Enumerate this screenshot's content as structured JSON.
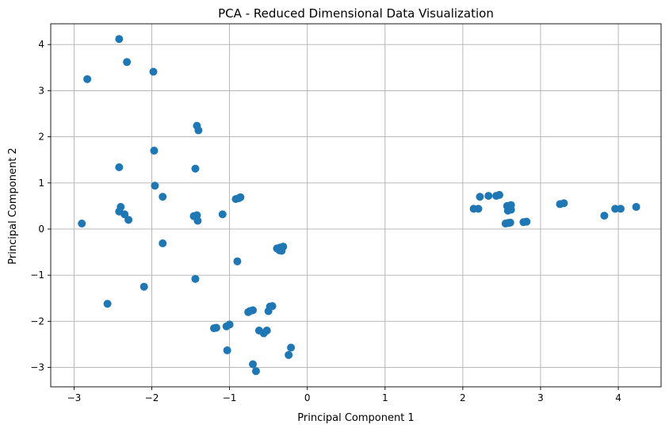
{
  "chart_data": {
    "type": "scatter",
    "title": "PCA - Reduced Dimensional Data Visualization",
    "xlabel": "Principal Component 1",
    "ylabel": "Principal Component 2",
    "xlim": [
      -3.3,
      4.55
    ],
    "ylim": [
      -3.42,
      4.45
    ],
    "xticks": [
      -3,
      -2,
      -1,
      0,
      1,
      2,
      3,
      4
    ],
    "yticks": [
      -3,
      -2,
      -1,
      0,
      1,
      2,
      3,
      4
    ],
    "xtick_labels": [
      "−3",
      "−2",
      "−1",
      "0",
      "1",
      "2",
      "3",
      "4"
    ],
    "ytick_labels": [
      "−3",
      "−2",
      "−1",
      "0",
      "1",
      "2",
      "3",
      "4"
    ],
    "grid": true,
    "marker_color": "#1f77b4",
    "points": [
      {
        "x": -2.42,
        "y": 4.12
      },
      {
        "x": -2.83,
        "y": 3.25
      },
      {
        "x": -2.32,
        "y": 3.62
      },
      {
        "x": -1.98,
        "y": 3.41
      },
      {
        "x": -1.42,
        "y": 2.24
      },
      {
        "x": -1.4,
        "y": 2.14
      },
      {
        "x": -1.97,
        "y": 1.7
      },
      {
        "x": -2.42,
        "y": 1.34
      },
      {
        "x": -1.44,
        "y": 1.31
      },
      {
        "x": -1.96,
        "y": 0.94
      },
      {
        "x": -1.86,
        "y": 0.7
      },
      {
        "x": -2.9,
        "y": 0.12
      },
      {
        "x": -2.4,
        "y": 0.48
      },
      {
        "x": -2.42,
        "y": 0.38
      },
      {
        "x": -2.35,
        "y": 0.32
      },
      {
        "x": -2.3,
        "y": 0.2
      },
      {
        "x": -1.46,
        "y": 0.28
      },
      {
        "x": -1.42,
        "y": 0.3
      },
      {
        "x": -1.41,
        "y": 0.18
      },
      {
        "x": -1.09,
        "y": 0.32
      },
      {
        "x": -0.92,
        "y": 0.65
      },
      {
        "x": -0.88,
        "y": 0.67
      },
      {
        "x": -0.86,
        "y": 0.69
      },
      {
        "x": -1.86,
        "y": -0.31
      },
      {
        "x": -0.9,
        "y": -0.7
      },
      {
        "x": -1.44,
        "y": -1.08
      },
      {
        "x": -2.1,
        "y": -1.25
      },
      {
        "x": -2.57,
        "y": -1.62
      },
      {
        "x": -0.39,
        "y": -0.42
      },
      {
        "x": -0.36,
        "y": -0.46
      },
      {
        "x": -0.33,
        "y": -0.47
      },
      {
        "x": -0.35,
        "y": -0.4
      },
      {
        "x": -0.31,
        "y": -0.38
      },
      {
        "x": -0.48,
        "y": -1.68
      },
      {
        "x": -0.45,
        "y": -1.67
      },
      {
        "x": -0.5,
        "y": -1.78
      },
      {
        "x": -0.7,
        "y": -1.76
      },
      {
        "x": -0.74,
        "y": -1.78
      },
      {
        "x": -0.76,
        "y": -1.8
      },
      {
        "x": -1.0,
        "y": -2.07
      },
      {
        "x": -1.04,
        "y": -2.11
      },
      {
        "x": -1.17,
        "y": -2.14
      },
      {
        "x": -1.2,
        "y": -2.15
      },
      {
        "x": -0.62,
        "y": -2.2
      },
      {
        "x": -0.56,
        "y": -2.26
      },
      {
        "x": -0.52,
        "y": -2.2
      },
      {
        "x": -1.03,
        "y": -2.63
      },
      {
        "x": -0.21,
        "y": -2.57
      },
      {
        "x": -0.24,
        "y": -2.73
      },
      {
        "x": -0.7,
        "y": -2.93
      },
      {
        "x": -0.66,
        "y": -3.08
      },
      {
        "x": 2.14,
        "y": 0.44
      },
      {
        "x": 2.2,
        "y": 0.44
      },
      {
        "x": 2.22,
        "y": 0.7
      },
      {
        "x": 2.33,
        "y": 0.72
      },
      {
        "x": 2.43,
        "y": 0.72
      },
      {
        "x": 2.47,
        "y": 0.74
      },
      {
        "x": 2.57,
        "y": 0.5
      },
      {
        "x": 2.62,
        "y": 0.52
      },
      {
        "x": 2.58,
        "y": 0.4
      },
      {
        "x": 2.62,
        "y": 0.42
      },
      {
        "x": 2.55,
        "y": 0.12
      },
      {
        "x": 2.58,
        "y": 0.13
      },
      {
        "x": 2.61,
        "y": 0.14
      },
      {
        "x": 2.78,
        "y": 0.15
      },
      {
        "x": 2.82,
        "y": 0.16
      },
      {
        "x": 3.25,
        "y": 0.54
      },
      {
        "x": 3.3,
        "y": 0.56
      },
      {
        "x": 3.82,
        "y": 0.29
      },
      {
        "x": 3.96,
        "y": 0.44
      },
      {
        "x": 4.03,
        "y": 0.44
      },
      {
        "x": 4.23,
        "y": 0.48
      }
    ]
  }
}
